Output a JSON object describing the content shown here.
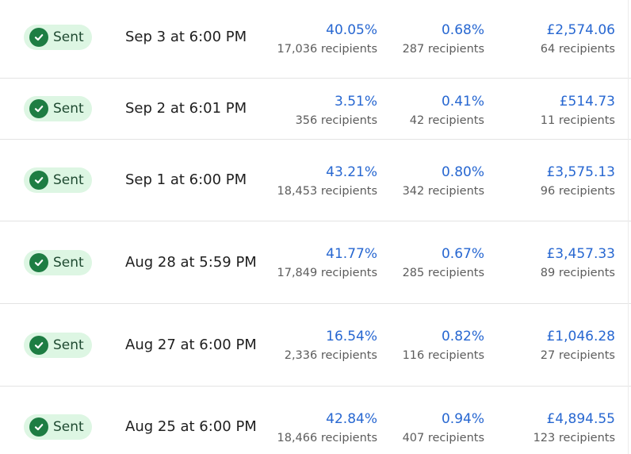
{
  "rows": [
    {
      "status": "Sent",
      "date": "Sep 3 at 6:00 PM",
      "open_rate": "40.05%",
      "open_recipients": "17,036 recipients",
      "click_rate": "0.68%",
      "click_recipients": "287 recipients",
      "revenue": "£2,574.06",
      "revenue_recipients": "64 recipients"
    },
    {
      "status": "Sent",
      "date": "Sep 2 at 6:01 PM",
      "open_rate": "3.51%",
      "open_recipients": "356 recipients",
      "click_rate": "0.41%",
      "click_recipients": "42 recipients",
      "revenue": "£514.73",
      "revenue_recipients": "11 recipients"
    },
    {
      "status": "Sent",
      "date": "Sep 1 at 6:00 PM",
      "open_rate": "43.21%",
      "open_recipients": "18,453 recipients",
      "click_rate": "0.80%",
      "click_recipients": "342 recipients",
      "revenue": "£3,575.13",
      "revenue_recipients": "96 recipients"
    },
    {
      "status": "Sent",
      "date": "Aug 28 at 5:59 PM",
      "open_rate": "41.77%",
      "open_recipients": "17,849 recipients",
      "click_rate": "0.67%",
      "click_recipients": "285 recipients",
      "revenue": "£3,457.33",
      "revenue_recipients": "89 recipients"
    },
    {
      "status": "Sent",
      "date": "Aug 27 at 6:00 PM",
      "open_rate": "16.54%",
      "open_recipients": "2,336 recipients",
      "click_rate": "0.82%",
      "click_recipients": "116 recipients",
      "revenue": "£1,046.28",
      "revenue_recipients": "27 recipients"
    },
    {
      "status": "Sent",
      "date": "Aug 25 at 6:00 PM",
      "open_rate": "42.84%",
      "open_recipients": "18,466 recipients",
      "click_rate": "0.94%",
      "click_recipients": "407 recipients",
      "revenue": "£4,894.55",
      "revenue_recipients": "123 recipients"
    }
  ],
  "colors": {
    "badge_bg": "#ddf6e3",
    "check_icon": "#1e7d43",
    "metric_value": "#2767d1"
  },
  "icons": {
    "status": "check-circle-icon"
  }
}
